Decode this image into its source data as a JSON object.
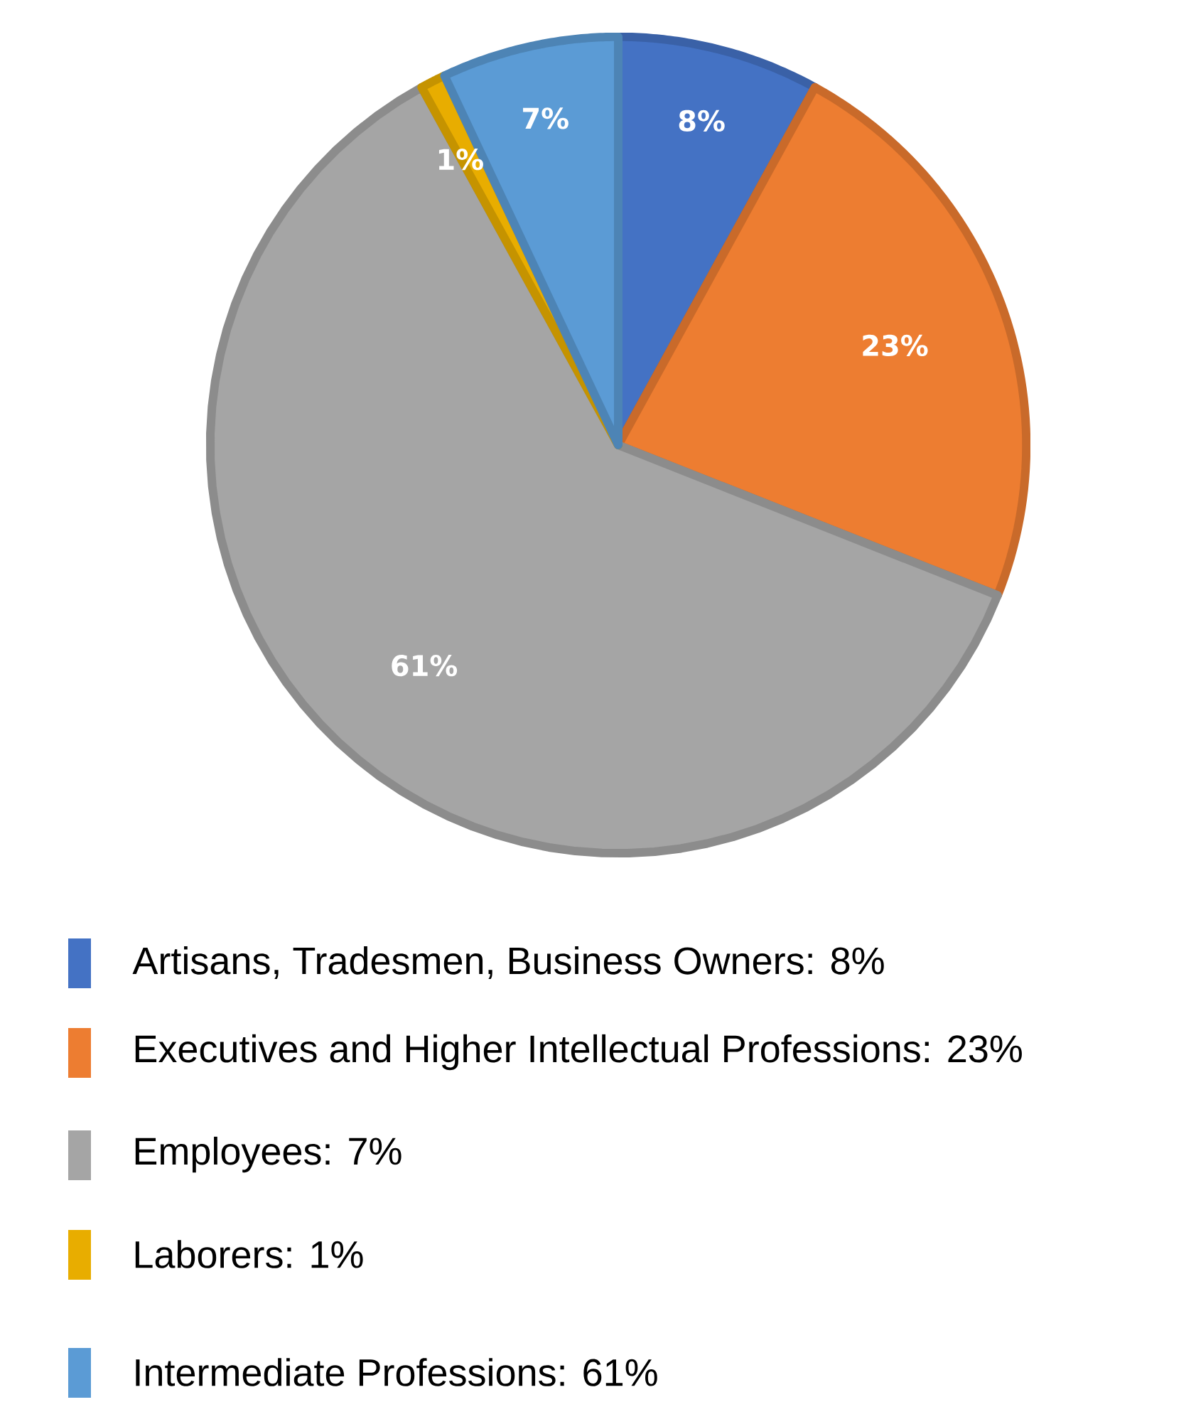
{
  "chart_data": {
    "type": "pie",
    "categories": [
      "Artisans, Tradesmen, Business Owners: 8%",
      "Executives and Higher Intellectual Professions: 23%",
      "Employees: 7%",
      "Laborers: 1%",
      "Intermediate Professions: 61%"
    ],
    "values": [
      8,
      23,
      61,
      1,
      7
    ],
    "colors": [
      "#4472c4",
      "#ed7d31",
      "#a5a5a5",
      "#e8ad00",
      "#5b9bd5"
    ],
    "value_labels": [
      "8%",
      "23%",
      "61%",
      "1%",
      "7%"
    ],
    "legend": "bottom"
  }
}
